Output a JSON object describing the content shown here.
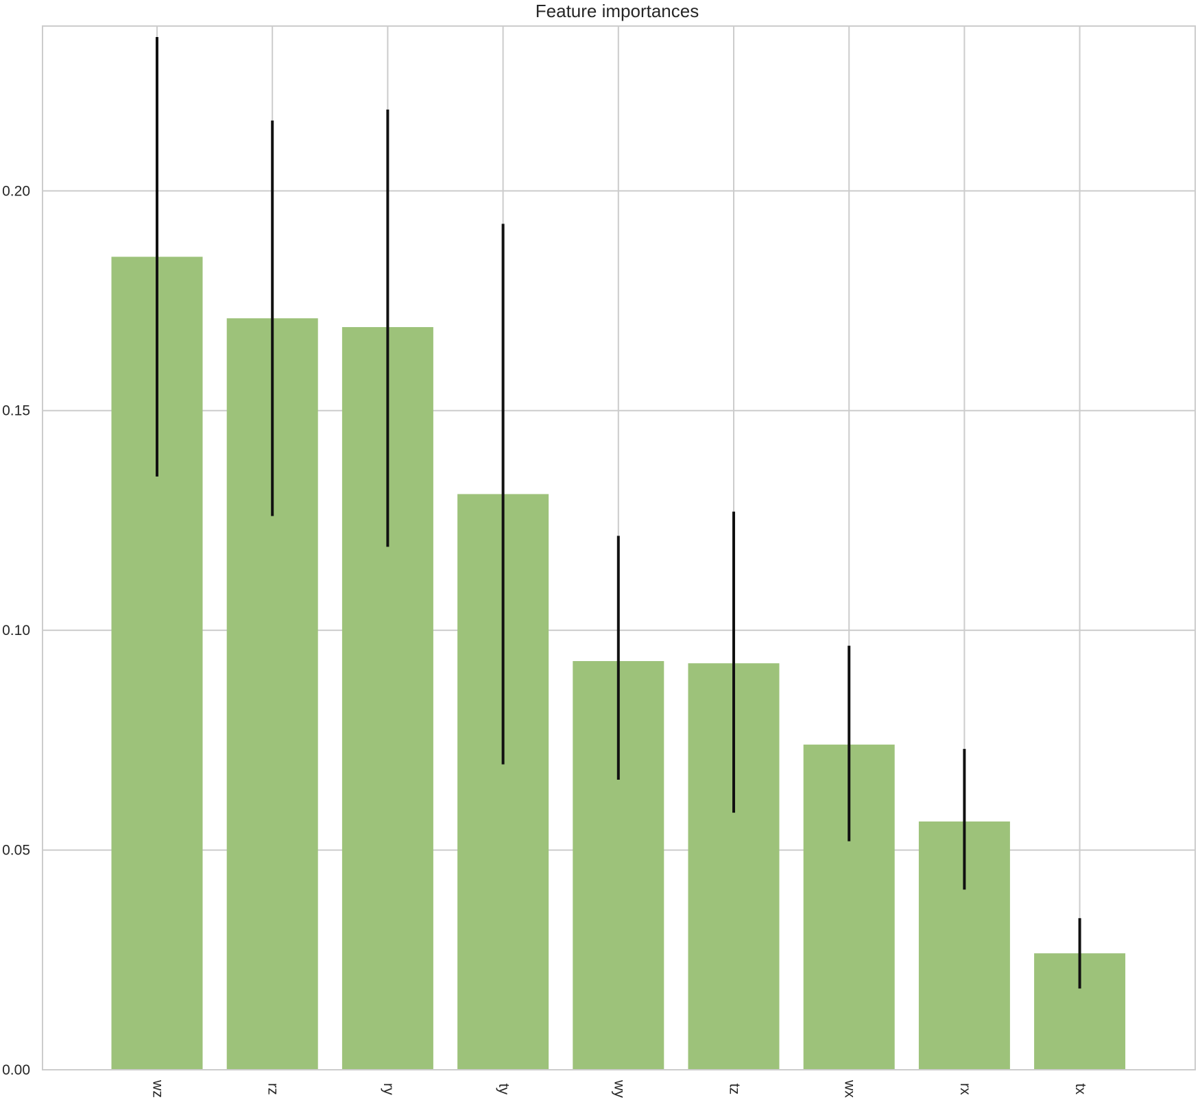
{
  "chart_data": {
    "type": "bar",
    "title": "Feature importances",
    "xlabel": "",
    "ylabel": "",
    "categories": [
      "wz",
      "rz",
      "ry",
      "ty",
      "wy",
      "tz",
      "wx",
      "rx",
      "tx"
    ],
    "values": [
      0.185,
      0.171,
      0.169,
      0.131,
      0.093,
      0.0925,
      0.074,
      0.0565,
      0.0265
    ],
    "error_low": [
      0.135,
      0.126,
      0.119,
      0.0695,
      0.066,
      0.0585,
      0.052,
      0.041,
      0.0185
    ],
    "error_high": [
      0.235,
      0.216,
      0.2185,
      0.1925,
      0.1215,
      0.127,
      0.0965,
      0.073,
      0.0345
    ],
    "ylim": [
      0.0,
      0.2375
    ],
    "yticks": [
      "0.00",
      "0.05",
      "0.10",
      "0.15",
      "0.20"
    ],
    "grid": true,
    "colors": {
      "bar": "#9dc27a",
      "error": "#111111",
      "grid": "#cccccc",
      "axes": "#cccccc"
    }
  }
}
